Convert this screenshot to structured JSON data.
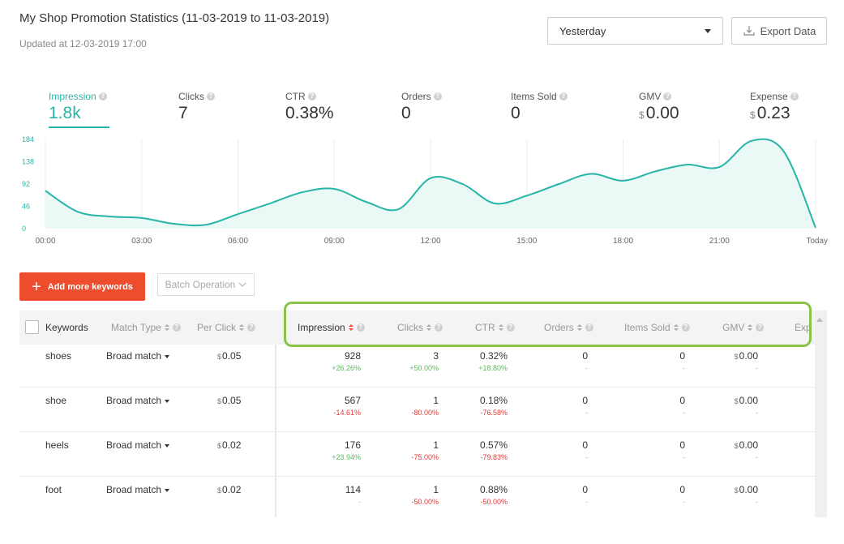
{
  "header": {
    "title": "My Shop Promotion Statistics (11-03-2019 to 11-03-2019)",
    "updated": "Updated at 12-03-2019 17:00"
  },
  "period_select": {
    "value": "Yesterday"
  },
  "export_button": {
    "label": "Export Data",
    "icon": "download-icon"
  },
  "metrics": [
    {
      "label": "Impression",
      "value": "1.8k",
      "currency": ""
    },
    {
      "label": "Clicks",
      "value": "7",
      "currency": ""
    },
    {
      "label": "CTR",
      "value": "0.38%",
      "currency": ""
    },
    {
      "label": "Orders",
      "value": "0",
      "currency": ""
    },
    {
      "label": "Items Sold",
      "value": "0",
      "currency": ""
    },
    {
      "label": "GMV",
      "value": "0.00",
      "currency": "$"
    },
    {
      "label": "Expense",
      "value": "0.23",
      "currency": "$"
    }
  ],
  "chart_data": {
    "type": "line",
    "title": "",
    "xlabel": "",
    "ylabel": "",
    "y_ticks": [
      "0",
      "46",
      "92",
      "138",
      "184"
    ],
    "ylim": [
      0,
      184
    ],
    "x_ticks": [
      "00:00",
      "03:00",
      "06:00",
      "09:00",
      "12:00",
      "15:00",
      "18:00",
      "21:00",
      "Today"
    ],
    "x": [
      0,
      1,
      2,
      3,
      4,
      5,
      6,
      7,
      8,
      9,
      10,
      11,
      12,
      13,
      14,
      15,
      16,
      17,
      18,
      19,
      20,
      21,
      22,
      23,
      24
    ],
    "series": [
      {
        "values": [
          78,
          35,
          25,
          22,
          10,
          8,
          30,
          52,
          75,
          82,
          55,
          40,
          104,
          92,
          52,
          68,
          92,
          113,
          99,
          118,
          132,
          127,
          181,
          160,
          2
        ]
      }
    ],
    "grid": "vertical",
    "line_color": "#26b5a6",
    "fill_color": "#eaf8f6"
  },
  "actions": {
    "add_keywords": "Add more keywords",
    "batch_operation": "Batch Operation"
  },
  "table": {
    "headers": {
      "keywords": "Keywords",
      "match_type": "Match Type",
      "per_click": "Per Click",
      "impression": "Impression",
      "clicks": "Clicks",
      "ctr": "CTR",
      "orders": "Orders",
      "items_sold": "Items Sold",
      "gmv": "GMV",
      "expense": "Exp"
    },
    "rows": [
      {
        "keyword": "shoes",
        "match_type": "Broad match",
        "per_click": "0.05",
        "impression": "928",
        "impression_change": "+26.26%",
        "clicks": "3",
        "clicks_change": "+50.00%",
        "ctr": "0.32%",
        "ctr_change": "+18.80%",
        "orders": "0",
        "orders_change": "-",
        "items_sold": "0",
        "items_sold_change": "-",
        "gmv": "0.00",
        "gmv_change": "-"
      },
      {
        "keyword": "shoe",
        "match_type": "Broad match",
        "per_click": "0.05",
        "impression": "567",
        "impression_change": "-14.61%",
        "clicks": "1",
        "clicks_change": "-80.00%",
        "ctr": "0.18%",
        "ctr_change": "-76.58%",
        "orders": "0",
        "orders_change": "-",
        "items_sold": "0",
        "items_sold_change": "-",
        "gmv": "0.00",
        "gmv_change": "-"
      },
      {
        "keyword": "heels",
        "match_type": "Broad match",
        "per_click": "0.02",
        "impression": "176",
        "impression_change": "+23.94%",
        "clicks": "1",
        "clicks_change": "-75.00%",
        "ctr": "0.57%",
        "ctr_change": "-79.83%",
        "orders": "0",
        "orders_change": "-",
        "items_sold": "0",
        "items_sold_change": "-",
        "gmv": "0.00",
        "gmv_change": "-"
      },
      {
        "keyword": "foot",
        "match_type": "Broad match",
        "per_click": "0.02",
        "impression": "114",
        "impression_change": "-",
        "clicks": "1",
        "clicks_change": "-50.00%",
        "ctr": "0.88%",
        "ctr_change": "-50.00%",
        "orders": "0",
        "orders_change": "-",
        "items_sold": "0",
        "items_sold_change": "-",
        "gmv": "0.00",
        "gmv_change": "-"
      }
    ],
    "currency": "$"
  }
}
